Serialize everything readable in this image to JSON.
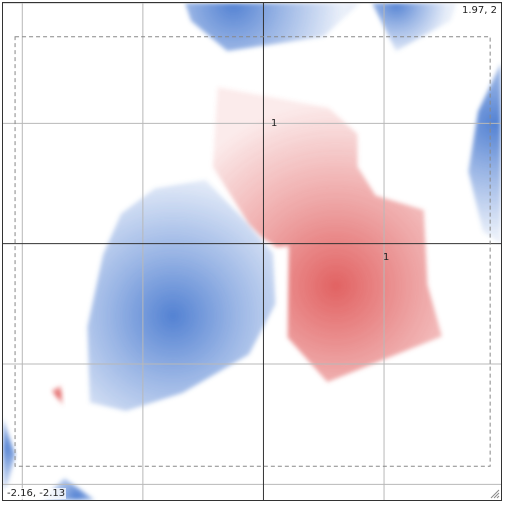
{
  "viewport": {
    "max_label": "1.97, 2",
    "min_label": "-2.16, -2.13"
  },
  "chart_data": {
    "type": "heatmap",
    "title": "",
    "xlabel": "",
    "ylabel": "",
    "xlim": [
      -2.16,
      1.97
    ],
    "ylim": [
      -2.13,
      2
    ],
    "grid": true,
    "grid_step": 1,
    "tick_labels": {
      "x": [
        "1"
      ],
      "y": [
        "1"
      ]
    },
    "colors": {
      "positive": "#e05a5a",
      "negative": "#4a7bd0",
      "grid": "#b8b8b8",
      "axis": "#333333",
      "bounds": "#888888"
    },
    "bounds_rect": {
      "x0": -2.06,
      "x1": 1.88,
      "y0": -1.85,
      "y1": 1.72
    },
    "regions": [
      {
        "name": "positive",
        "sign": 1,
        "peak": [
          0.6,
          -0.35
        ],
        "outline": [
          [
            -0.38,
            1.3
          ],
          [
            0.54,
            1.13
          ],
          [
            0.78,
            0.91
          ],
          [
            0.78,
            0.64
          ],
          [
            0.93,
            0.4
          ],
          [
            1.33,
            0.28
          ],
          [
            1.36,
            -0.34
          ],
          [
            1.48,
            -0.77
          ],
          [
            0.53,
            -1.15
          ],
          [
            0.2,
            -0.78
          ],
          [
            0.21,
            -0.02
          ],
          [
            0.11,
            -0.03
          ],
          [
            -0.01,
            0.05
          ],
          [
            -0.12,
            0.16
          ],
          [
            -0.42,
            0.64
          ]
        ]
      },
      {
        "name": "negative",
        "sign": -1,
        "peak": [
          -0.75,
          -0.6
        ],
        "outline": [
          [
            -0.48,
            0.53
          ],
          [
            -0.9,
            0.46
          ],
          [
            -1.18,
            0.25
          ],
          [
            -1.33,
            -0.09
          ],
          [
            -1.46,
            -0.69
          ],
          [
            -1.44,
            -1.32
          ],
          [
            -1.14,
            -1.39
          ],
          [
            -0.67,
            -1.24
          ],
          [
            -0.12,
            -0.92
          ],
          [
            0.1,
            -0.5
          ],
          [
            0.08,
            -0.08
          ],
          [
            -0.18,
            0.22
          ]
        ]
      },
      {
        "name": "negative",
        "sign": -1,
        "peak": [
          -0.25,
          2.0
        ],
        "outline": [
          [
            -0.65,
            2.0
          ],
          [
            -0.6,
            1.85
          ],
          [
            -0.3,
            1.6
          ],
          [
            0.5,
            1.72
          ],
          [
            0.8,
            2.0
          ]
        ]
      },
      {
        "name": "negative",
        "sign": -1,
        "peak": [
          1.1,
          2.0
        ],
        "outline": [
          [
            0.9,
            2.0
          ],
          [
            1.1,
            1.6
          ],
          [
            1.55,
            1.85
          ],
          [
            1.6,
            2.0
          ]
        ]
      },
      {
        "name": "negative",
        "sign": -1,
        "peak": [
          1.92,
          1.0
        ],
        "outline": [
          [
            1.97,
            1.5
          ],
          [
            1.78,
            1.1
          ],
          [
            1.7,
            0.6
          ],
          [
            1.82,
            0.1
          ],
          [
            1.97,
            0.0
          ]
        ]
      },
      {
        "name": "negative",
        "sign": -1,
        "peak": [
          -2.16,
          -1.7
        ],
        "outline": [
          [
            -2.16,
            -1.45
          ],
          [
            -2.06,
            -1.75
          ],
          [
            -2.12,
            -2.0
          ],
          [
            -2.16,
            -2.05
          ]
        ]
      },
      {
        "name": "negative",
        "sign": -1,
        "peak": [
          -1.55,
          -2.1
        ],
        "outline": [
          [
            -1.85,
            -2.13
          ],
          [
            -1.65,
            -1.95
          ],
          [
            -1.4,
            -2.13
          ]
        ]
      },
      {
        "name": "positive",
        "sign": 1,
        "peak": [
          -1.7,
          -1.25
        ],
        "outline": [
          [
            -1.76,
            -1.22
          ],
          [
            -1.68,
            -1.18
          ],
          [
            -1.66,
            -1.35
          ]
        ]
      }
    ]
  }
}
